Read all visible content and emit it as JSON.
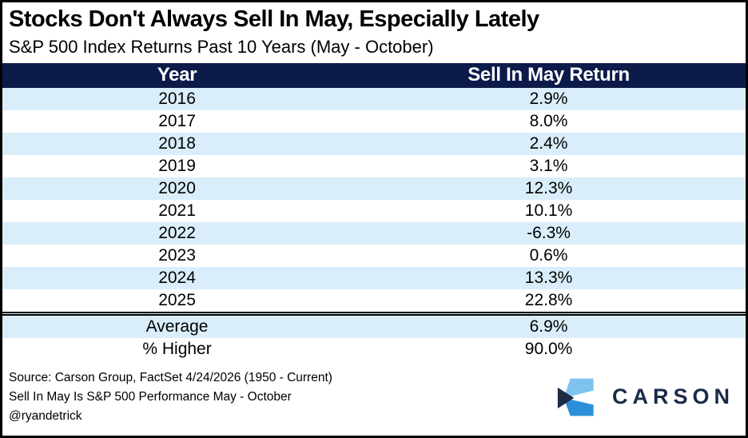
{
  "title": "Stocks Don't Always Sell In May, Especially Lately",
  "subtitle": "S&P 500 Index Returns Past 10 Years (May - October)",
  "table": {
    "columns": [
      "Year",
      "Sell In May Return"
    ],
    "rows": [
      {
        "year": "2016",
        "return": "2.9%",
        "tone": "positive",
        "shaded": true
      },
      {
        "year": "2017",
        "return": "8.0%",
        "tone": "positive",
        "shaded": false
      },
      {
        "year": "2018",
        "return": "2.4%",
        "tone": "positive",
        "shaded": true
      },
      {
        "year": "2019",
        "return": "3.1%",
        "tone": "positive",
        "shaded": false
      },
      {
        "year": "2020",
        "return": "12.3%",
        "tone": "positive",
        "shaded": true
      },
      {
        "year": "2021",
        "return": "10.1%",
        "tone": "positive",
        "shaded": false
      },
      {
        "year": "2022",
        "return": "-6.3%",
        "tone": "negative",
        "shaded": true
      },
      {
        "year": "2023",
        "return": "0.6%",
        "tone": "positive",
        "shaded": false
      },
      {
        "year": "2024",
        "return": "13.3%",
        "tone": "positive",
        "shaded": true
      },
      {
        "year": "2025",
        "return": "22.8%",
        "tone": "positive",
        "shaded": false
      }
    ],
    "summary": {
      "average_label": "Average",
      "average_value": "6.9%",
      "higher_label": "% Higher",
      "higher_value": "90.0%"
    }
  },
  "footer": {
    "source_line1": "Source: Carson Group, FactSet 4/24/2026 (1950 - Current)",
    "source_line2": "Sell In May Is S&P 500 Performance May - October",
    "source_line3": "@ryandetrick",
    "logo_text": "CARSON"
  },
  "colors": {
    "navy": "#0d1b4a",
    "lightblue": "#d9eefa",
    "green": "#00b050",
    "avggreen": "#4ea72e",
    "red": "#9e0b0f",
    "logonavy": "#1b2a4a",
    "logolight": "#7ec3ee",
    "logomid": "#2b90d9",
    "logodark": "#1e2b44"
  },
  "chart_data": {
    "type": "table",
    "title": "Stocks Don't Always Sell In May, Especially Lately",
    "subtitle": "S&P 500 Index Returns Past 10 Years (May - October)",
    "columns": [
      "Year",
      "Sell In May Return"
    ],
    "years": [
      2016,
      2017,
      2018,
      2019,
      2020,
      2021,
      2022,
      2023,
      2024,
      2025
    ],
    "returns_pct": [
      2.9,
      8.0,
      2.4,
      3.1,
      12.3,
      10.1,
      -6.3,
      0.6,
      13.3,
      22.8
    ],
    "average_pct": 6.9,
    "percent_higher_pct": 90.0,
    "positive_color": "#00b050",
    "negative_color": "#9e0b0f"
  }
}
